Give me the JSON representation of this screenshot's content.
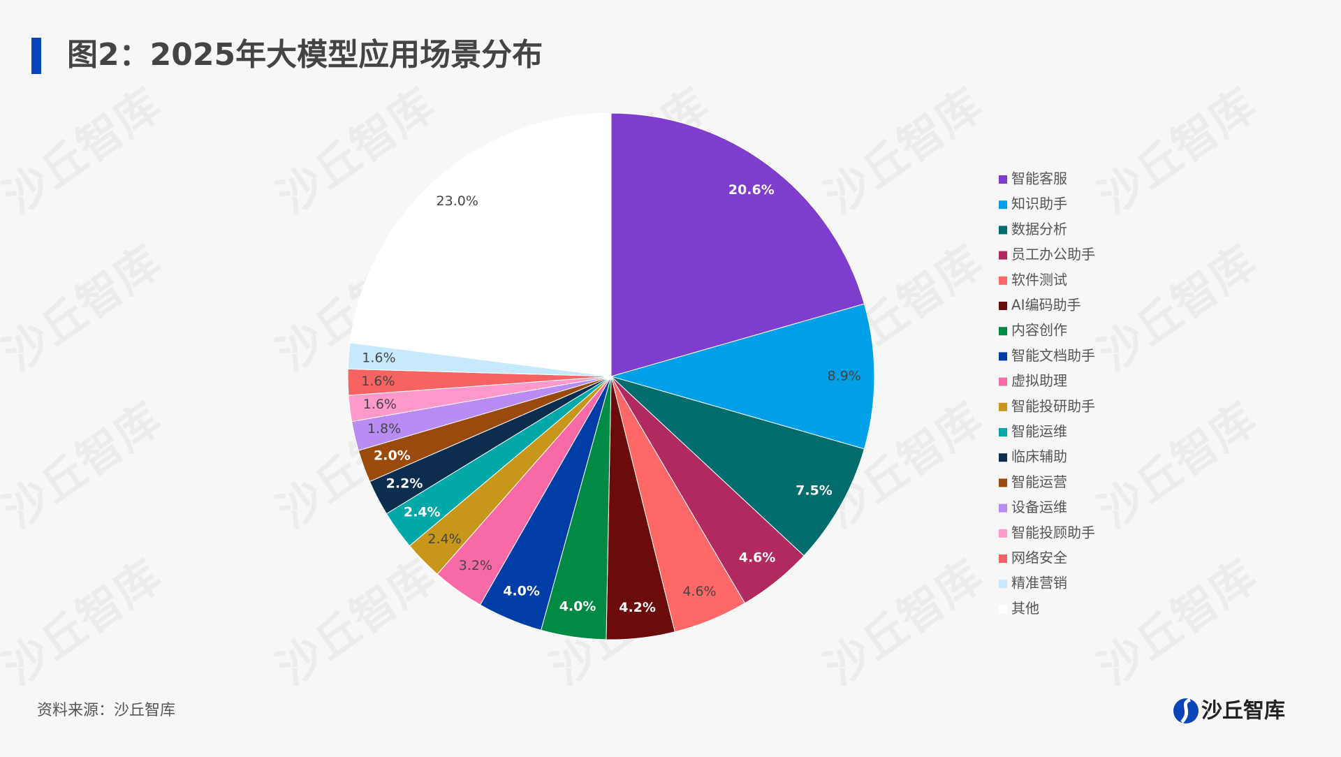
{
  "chart_data": {
    "type": "pie",
    "title": "图2：2025年大模型应用场景分布",
    "categories": [
      "智能客服",
      "知识助手",
      "数据分析",
      "员工办公助手",
      "软件测试",
      "AI编码助手",
      "内容创作",
      "智能文档助手",
      "虚拟助理",
      "智能投研助手",
      "智能运维",
      "临床辅助",
      "智能运营",
      "设备运维",
      "智能投顾助手",
      "网络安全",
      "精准营销",
      "其他"
    ],
    "values": [
      20.6,
      8.9,
      7.5,
      4.6,
      4.6,
      4.2,
      4.0,
      4.0,
      3.2,
      2.4,
      2.4,
      2.2,
      2.0,
      1.8,
      1.6,
      1.6,
      1.6,
      23.0
    ],
    "value_labels": [
      "20.6%",
      "8.9%",
      "7.5%",
      "4.6%",
      "4.6%",
      "4.2%",
      "4.0%",
      "4.0%",
      "3.2%",
      "2.4%",
      "2.4%",
      "2.2%",
      "2.0%",
      "1.8%",
      "1.6%",
      "1.6%",
      "1.6%",
      "23.0%"
    ],
    "colors": [
      "#7e3dcc",
      "#00a0e9",
      "#006c6c",
      "#b0295f",
      "#ff6868",
      "#6b0b0b",
      "#008a44",
      "#003da6",
      "#f76aa6",
      "#c8961a",
      "#00a8a8",
      "#0c2d4e",
      "#994a0c",
      "#b98cf3",
      "#ff99cc",
      "#f76262",
      "#c6eafb",
      "#ffffff"
    ],
    "legend": "right",
    "source": "资料来源：沙丘智库"
  },
  "watermark": "沙丘智库",
  "logo": "沙丘智库"
}
